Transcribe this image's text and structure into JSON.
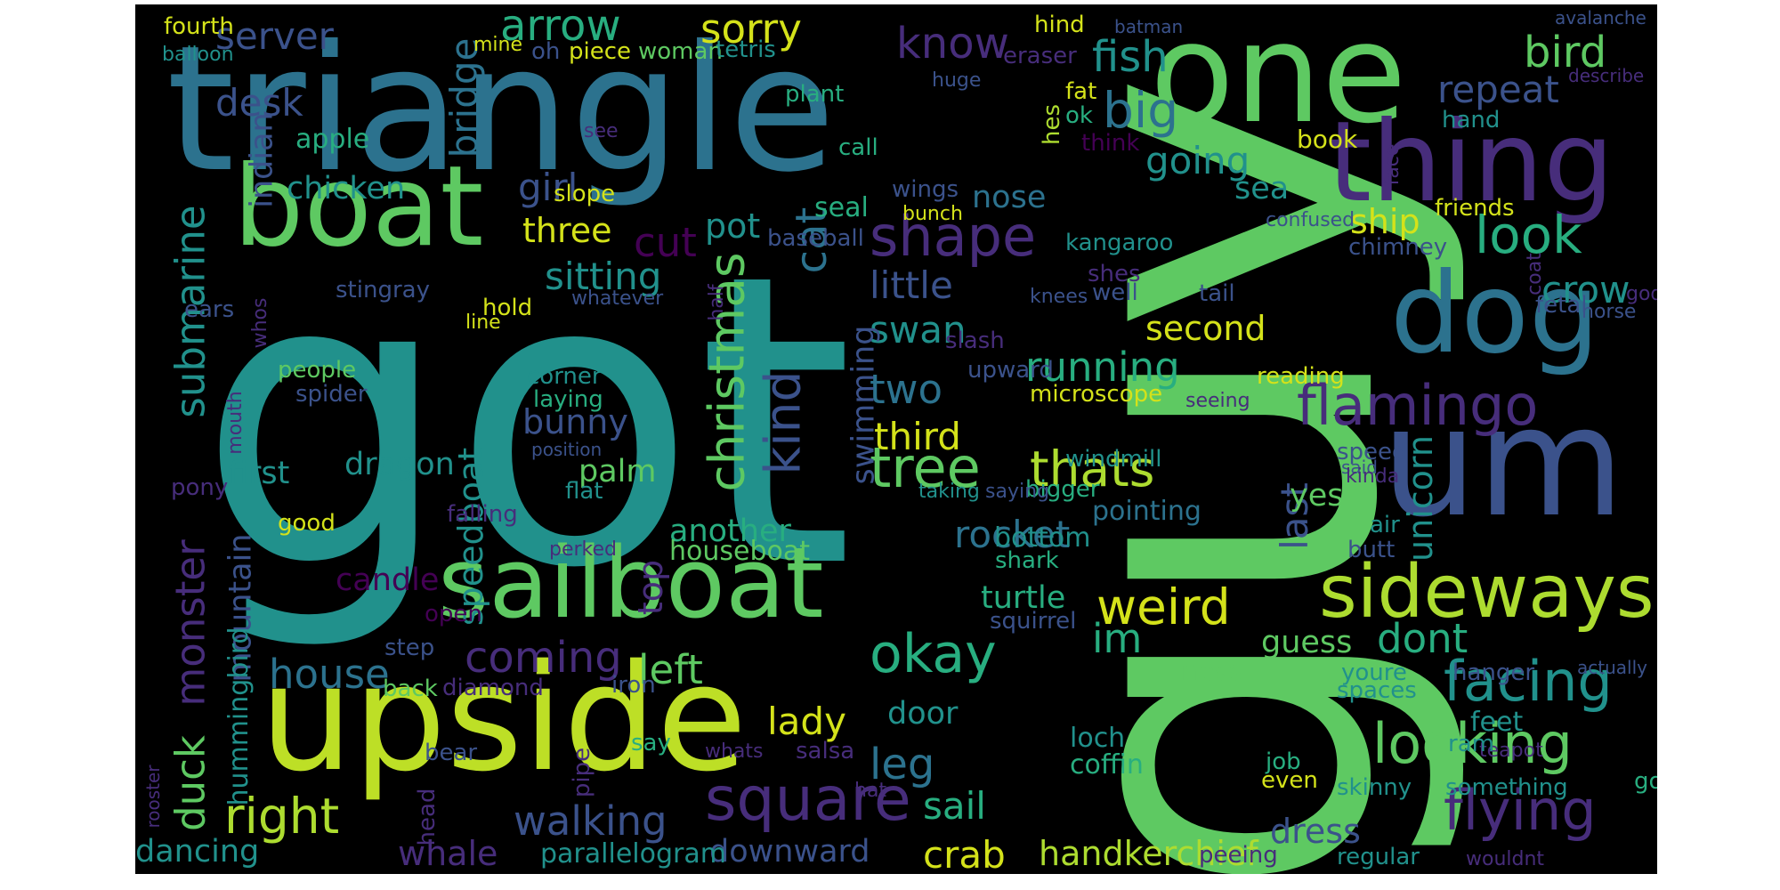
{
  "image": {
    "type": "word-cloud",
    "background": "#000000",
    "palette": [
      "#440154",
      "#472d7b",
      "#3b528b",
      "#2c728e",
      "#21918c",
      "#28ae80",
      "#5ec962",
      "#addc30",
      "#d4e21a"
    ]
  },
  "words": [
    {
      "text": "got",
      "color": "#21918c"
    },
    {
      "text": "guy",
      "color": "#5ec962"
    },
    {
      "text": "triangle",
      "color": "#2c728e"
    },
    {
      "text": "one",
      "color": "#5ec962"
    },
    {
      "text": "upside",
      "color": "#bddf26"
    },
    {
      "text": "boat",
      "color": "#5ec962"
    },
    {
      "text": "thing",
      "color": "#472d7b"
    },
    {
      "text": "sailboat",
      "color": "#5ec962"
    },
    {
      "text": "dog",
      "color": "#2c728e"
    },
    {
      "text": "um",
      "color": "#3b528b"
    },
    {
      "text": "sideways",
      "color": "#addc30"
    },
    {
      "text": "square",
      "color": "#472d7b"
    },
    {
      "text": "facing",
      "color": "#21918c"
    },
    {
      "text": "looking",
      "color": "#5ec962"
    },
    {
      "text": "flying",
      "color": "#472d7b"
    },
    {
      "text": "flamingo",
      "color": "#472d7b"
    },
    {
      "text": "tree",
      "color": "#5ec962"
    },
    {
      "text": "thats",
      "color": "#addc30"
    },
    {
      "text": "okay",
      "color": "#28ae80"
    },
    {
      "text": "shape",
      "color": "#472d7b"
    },
    {
      "text": "weird",
      "color": "#d4e21a"
    },
    {
      "text": "look",
      "color": "#28ae80"
    },
    {
      "text": "christmas",
      "color": "#5ec962"
    },
    {
      "text": "kind",
      "color": "#3b528b"
    },
    {
      "text": "arrow",
      "color": "#28ae80"
    },
    {
      "text": "bird",
      "color": "#5ec962"
    },
    {
      "text": "big",
      "color": "#2c728e"
    },
    {
      "text": "fish",
      "color": "#21918c"
    },
    {
      "text": "know",
      "color": "#472d7b"
    },
    {
      "text": "sorry",
      "color": "#d4e21a"
    },
    {
      "text": "server",
      "color": "#3b528b"
    },
    {
      "text": "desk",
      "color": "#3b528b"
    },
    {
      "text": "bridge",
      "color": "#2c728e"
    },
    {
      "text": "repeat",
      "color": "#3b528b"
    },
    {
      "text": "going",
      "color": "#21918c"
    },
    {
      "text": "girl",
      "color": "#3b528b"
    },
    {
      "text": "cut",
      "color": "#440154"
    },
    {
      "text": "three",
      "color": "#d4e21a"
    },
    {
      "text": "pot",
      "color": "#21918c"
    },
    {
      "text": "cat",
      "color": "#2c728e"
    },
    {
      "text": "sitting",
      "color": "#21918c"
    },
    {
      "text": "submarine",
      "color": "#21918c"
    },
    {
      "text": "little",
      "color": "#3b528b"
    },
    {
      "text": "ship",
      "color": "#d4e21a"
    },
    {
      "text": "crow",
      "color": "#21918c"
    },
    {
      "text": "swan",
      "color": "#21918c"
    },
    {
      "text": "second",
      "color": "#d4e21a"
    },
    {
      "text": "running",
      "color": "#28ae80"
    },
    {
      "text": "two",
      "color": "#2c728e"
    },
    {
      "text": "third",
      "color": "#d4e21a"
    },
    {
      "text": "bunny",
      "color": "#3b528b"
    },
    {
      "text": "dragon",
      "color": "#21918c"
    },
    {
      "text": "first",
      "color": "#21918c"
    },
    {
      "text": "speedboat",
      "color": "#21918c"
    },
    {
      "text": "last",
      "color": "#3b528b"
    },
    {
      "text": "rocket",
      "color": "#2c728e"
    },
    {
      "text": "another",
      "color": "#28ae80"
    },
    {
      "text": "monster",
      "color": "#472d7b"
    },
    {
      "text": "mountain",
      "color": "#3b528b"
    },
    {
      "text": "duck",
      "color": "#5ec962"
    },
    {
      "text": "right",
      "color": "#addc30"
    },
    {
      "text": "house",
      "color": "#2c728e"
    },
    {
      "text": "coming",
      "color": "#472d7b"
    },
    {
      "text": "left",
      "color": "#5ec962"
    },
    {
      "text": "lady",
      "color": "#d4e21a"
    },
    {
      "text": "leg",
      "color": "#2c728e"
    },
    {
      "text": "im",
      "color": "#28ae80"
    },
    {
      "text": "dont",
      "color": "#28ae80"
    },
    {
      "text": "guess",
      "color": "#5ec962"
    },
    {
      "text": "walking",
      "color": "#3b528b"
    },
    {
      "text": "sail",
      "color": "#28ae80"
    },
    {
      "text": "crab",
      "color": "#d4e21a"
    },
    {
      "text": "handkerchief",
      "color": "#addc30"
    },
    {
      "text": "dress",
      "color": "#3b528b"
    },
    {
      "text": "whale",
      "color": "#472d7b"
    },
    {
      "text": "dancing",
      "color": "#21918c"
    },
    {
      "text": "downward",
      "color": "#3b528b"
    },
    {
      "text": "parallelogram",
      "color": "#21918c"
    },
    {
      "text": "candle",
      "color": "#440154"
    },
    {
      "text": "unicorn",
      "color": "#21918c"
    },
    {
      "text": "houseboat",
      "color": "#5ec962"
    },
    {
      "text": "turtle",
      "color": "#28ae80"
    },
    {
      "text": "door",
      "color": "#21918c"
    },
    {
      "text": "palm",
      "color": "#5ec962"
    },
    {
      "text": "nose",
      "color": "#2c728e"
    },
    {
      "text": "sea",
      "color": "#21918c"
    },
    {
      "text": "seal",
      "color": "#28ae80"
    },
    {
      "text": "swimming",
      "color": "#3b528b"
    },
    {
      "text": "pointing",
      "color": "#2c728e"
    },
    {
      "text": "bottom",
      "color": "#21918c"
    },
    {
      "text": "yes",
      "color": "#5ec962"
    },
    {
      "text": "loch",
      "color": "#21918c"
    },
    {
      "text": "coffin",
      "color": "#28ae80"
    },
    {
      "text": "ness",
      "color": "#5ec962"
    },
    {
      "text": "feet",
      "color": "#21918c"
    },
    {
      "text": "youre",
      "color": "#21918c"
    },
    {
      "text": "hanger",
      "color": "#3b528b"
    },
    {
      "text": "chicken",
      "color": "#21918c"
    },
    {
      "text": "indian",
      "color": "#3b528b"
    },
    {
      "text": "apple",
      "color": "#28ae80"
    },
    {
      "text": "fourth",
      "color": "#d4e21a"
    },
    {
      "text": "balloon",
      "color": "#21918c"
    },
    {
      "text": "mine",
      "color": "#d4e21a"
    },
    {
      "text": "oh",
      "color": "#3b528b"
    },
    {
      "text": "piece",
      "color": "#d4e21a"
    },
    {
      "text": "woman",
      "color": "#5ec962"
    },
    {
      "text": "tetris",
      "color": "#21918c"
    },
    {
      "text": "plant",
      "color": "#28ae80"
    },
    {
      "text": "hind",
      "color": "#d4e21a"
    },
    {
      "text": "batman",
      "color": "#3b528b"
    },
    {
      "text": "eraser",
      "color": "#472d7b"
    },
    {
      "text": "huge",
      "color": "#3b528b"
    },
    {
      "text": "fat",
      "color": "#d4e21a"
    },
    {
      "text": "ok",
      "color": "#28ae80"
    },
    {
      "text": "hes",
      "color": "#addc30"
    },
    {
      "text": "think",
      "color": "#440154"
    },
    {
      "text": "call",
      "color": "#28ae80"
    },
    {
      "text": "see",
      "color": "#472d7b"
    },
    {
      "text": "book",
      "color": "#d4e21a"
    },
    {
      "text": "face",
      "color": "#472d7b"
    },
    {
      "text": "hand",
      "color": "#21918c"
    },
    {
      "text": "avalanche",
      "color": "#3b528b"
    },
    {
      "text": "describe",
      "color": "#472d7b"
    },
    {
      "text": "slope",
      "color": "#d4e21a"
    },
    {
      "text": "wings",
      "color": "#3b528b"
    },
    {
      "text": "bunch",
      "color": "#d4e21a"
    },
    {
      "text": "confused",
      "color": "#3b528b"
    },
    {
      "text": "friends",
      "color": "#d4e21a"
    },
    {
      "text": "baseball",
      "color": "#3b528b"
    },
    {
      "text": "kangaroo",
      "color": "#21918c"
    },
    {
      "text": "chimney",
      "color": "#3b528b"
    },
    {
      "text": "shes",
      "color": "#472d7b"
    },
    {
      "text": "well",
      "color": "#3b528b"
    },
    {
      "text": "knees",
      "color": "#3b528b"
    },
    {
      "text": "tail",
      "color": "#3b528b"
    },
    {
      "text": "coat",
      "color": "#472d7b"
    },
    {
      "text": "fetal",
      "color": "#3b528b"
    },
    {
      "text": "horse",
      "color": "#3b528b"
    },
    {
      "text": "god",
      "color": "#472d7b"
    },
    {
      "text": "stingray",
      "color": "#3b528b"
    },
    {
      "text": "hold",
      "color": "#d4e21a"
    },
    {
      "text": "line",
      "color": "#d4e21a"
    },
    {
      "text": "whatever",
      "color": "#3b528b"
    },
    {
      "text": "half",
      "color": "#472d7b"
    },
    {
      "text": "ears",
      "color": "#3b528b"
    },
    {
      "text": "whos",
      "color": "#472d7b"
    },
    {
      "text": "mouth",
      "color": "#472d7b"
    },
    {
      "text": "people",
      "color": "#5ec962"
    },
    {
      "text": "spider",
      "color": "#3b528b"
    },
    {
      "text": "corner",
      "color": "#21918c"
    },
    {
      "text": "laying",
      "color": "#28ae80"
    },
    {
      "text": "position",
      "color": "#3b528b"
    },
    {
      "text": "said",
      "color": "#3b528b"
    },
    {
      "text": "flat",
      "color": "#21918c"
    },
    {
      "text": "slash",
      "color": "#472d7b"
    },
    {
      "text": "upward",
      "color": "#3b528b"
    },
    {
      "text": "microscope",
      "color": "#d4e21a"
    },
    {
      "text": "reading",
      "color": "#d4e21a"
    },
    {
      "text": "seeing",
      "color": "#472d7b"
    },
    {
      "text": "windmill",
      "color": "#21918c"
    },
    {
      "text": "bigger",
      "color": "#28ae80"
    },
    {
      "text": "saying",
      "color": "#3b528b"
    },
    {
      "text": "taking",
      "color": "#21918c"
    },
    {
      "text": "speed",
      "color": "#3b528b"
    },
    {
      "text": "kinda",
      "color": "#472d7b"
    },
    {
      "text": "air",
      "color": "#21918c"
    },
    {
      "text": "butt",
      "color": "#3b528b"
    },
    {
      "text": "pony",
      "color": "#472d7b"
    },
    {
      "text": "good",
      "color": "#d4e21a"
    },
    {
      "text": "falling",
      "color": "#472d7b"
    },
    {
      "text": "perked",
      "color": "#472d7b"
    },
    {
      "text": "top",
      "color": "#472d7b"
    },
    {
      "text": "shark",
      "color": "#28ae80"
    },
    {
      "text": "open",
      "color": "#440154"
    },
    {
      "text": "step",
      "color": "#3b528b"
    },
    {
      "text": "squirrel",
      "color": "#3b528b"
    },
    {
      "text": "back",
      "color": "#5ec962"
    },
    {
      "text": "diamond",
      "color": "#472d7b"
    },
    {
      "text": "iron",
      "color": "#3b528b"
    },
    {
      "text": "hummingbird",
      "color": "#21918c"
    },
    {
      "text": "teapot",
      "color": "#472d7b"
    },
    {
      "text": "actually",
      "color": "#3b528b"
    },
    {
      "text": "spaces",
      "color": "#21918c"
    },
    {
      "text": "ram",
      "color": "#21918c"
    },
    {
      "text": "job",
      "color": "#28ae80"
    },
    {
      "text": "even",
      "color": "#d4e21a"
    },
    {
      "text": "say",
      "color": "#28ae80"
    },
    {
      "text": "pipe",
      "color": "#472d7b"
    },
    {
      "text": "salsa",
      "color": "#472d7b"
    },
    {
      "text": "bear",
      "color": "#3b528b"
    },
    {
      "text": "rooster",
      "color": "#472d7b"
    },
    {
      "text": "head",
      "color": "#472d7b"
    },
    {
      "text": "whats",
      "color": "#472d7b"
    },
    {
      "text": "hat",
      "color": "#472d7b"
    },
    {
      "text": "skinny",
      "color": "#21918c"
    },
    {
      "text": "something",
      "color": "#21918c"
    },
    {
      "text": "go",
      "color": "#28ae80"
    },
    {
      "text": "peeing",
      "color": "#472d7b"
    },
    {
      "text": "regular",
      "color": "#21918c"
    },
    {
      "text": "wouldnt",
      "color": "#472d7b"
    }
  ]
}
